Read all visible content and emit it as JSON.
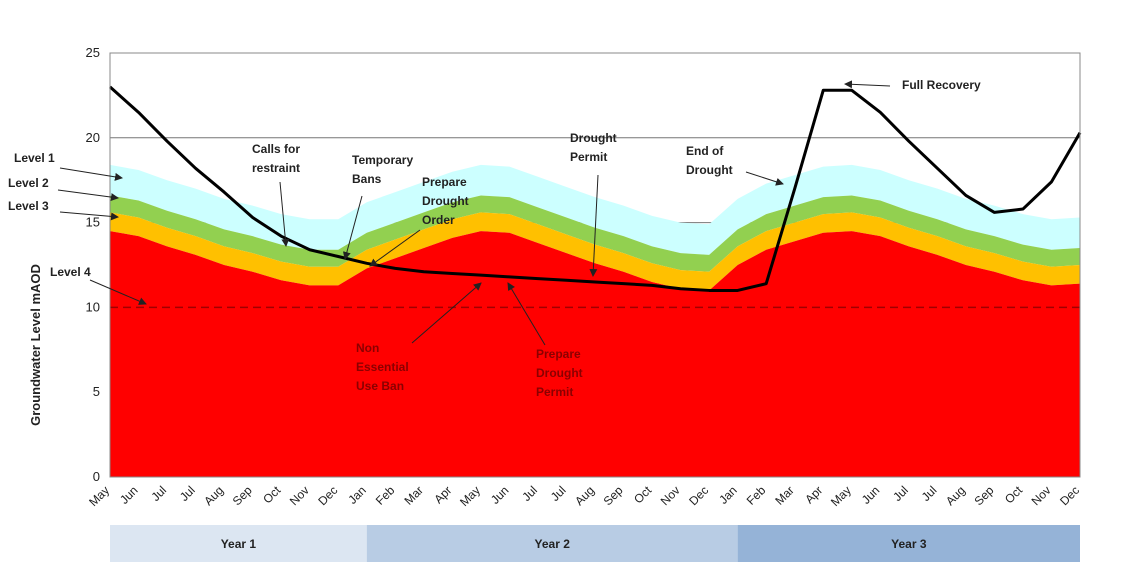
{
  "chart_data": {
    "type": "stacked_area_line",
    "y_label": "Groundwater Level mAOD",
    "categories": [
      "May",
      "Jun",
      "Jul",
      "Jul",
      "Aug",
      "Sep",
      "Oct",
      "Nov",
      "Dec",
      "Jan",
      "Feb",
      "Mar",
      "Apr",
      "May",
      "Jun",
      "Jul",
      "Jul",
      "Aug",
      "Sep",
      "Oct",
      "Nov",
      "Dec",
      "Jan",
      "Feb",
      "Mar",
      "Apr",
      "May",
      "Jun",
      "Jul",
      "Jul",
      "Aug",
      "Sep",
      "Oct",
      "Nov",
      "Dec"
    ],
    "ylim": [
      0,
      25
    ],
    "yticks": [
      0,
      5,
      10,
      15,
      20,
      25
    ],
    "grid": true,
    "series": [
      {
        "name": "Level 4",
        "color": "#ff0000",
        "values": [
          14.5,
          14.2,
          13.6,
          13.1,
          12.5,
          12.1,
          11.6,
          11.3,
          11.3,
          12.3,
          12.9,
          13.5,
          14.1,
          14.5,
          14.4,
          13.8,
          13.2,
          12.6,
          12.1,
          11.5,
          11.1,
          11.0,
          12.5,
          13.4,
          13.9,
          14.4,
          14.5,
          14.2,
          13.6,
          13.1,
          12.5,
          12.1,
          11.6,
          11.3,
          11.4
        ]
      },
      {
        "name": "Level 3",
        "color": "#ffc000",
        "values": [
          1.1,
          1.1,
          1.1,
          1.1,
          1.1,
          1.1,
          1.1,
          1.1,
          1.1,
          1.1,
          1.1,
          1.1,
          1.1,
          1.1,
          1.1,
          1.1,
          1.1,
          1.1,
          1.1,
          1.1,
          1.1,
          1.1,
          1.1,
          1.1,
          1.1,
          1.1,
          1.1,
          1.1,
          1.1,
          1.1,
          1.1,
          1.1,
          1.1,
          1.1,
          1.1
        ]
      },
      {
        "name": "Level 2",
        "color": "#92d050",
        "values": [
          1.0,
          1.0,
          1.0,
          1.0,
          1.0,
          1.0,
          1.0,
          1.0,
          1.0,
          1.0,
          1.0,
          1.0,
          1.0,
          1.0,
          1.0,
          1.0,
          1.0,
          1.0,
          1.0,
          1.0,
          1.0,
          1.0,
          1.0,
          1.0,
          1.0,
          1.0,
          1.0,
          1.0,
          1.0,
          1.0,
          1.0,
          1.0,
          1.0,
          1.0,
          1.0
        ]
      },
      {
        "name": "Level 1",
        "color": "#ccffff",
        "values": [
          1.8,
          1.8,
          1.8,
          1.8,
          1.8,
          1.8,
          1.8,
          1.8,
          1.8,
          1.8,
          1.8,
          1.8,
          1.8,
          1.8,
          1.8,
          1.8,
          1.8,
          1.8,
          1.8,
          1.8,
          1.8,
          1.8,
          1.8,
          1.8,
          1.8,
          1.8,
          1.8,
          1.8,
          1.8,
          1.8,
          1.8,
          1.8,
          1.8,
          1.8,
          1.8
        ]
      }
    ],
    "line": {
      "color": "#000000",
      "values": [
        23.0,
        21.5,
        19.8,
        18.2,
        16.8,
        15.3,
        14.2,
        13.4,
        13.0,
        12.6,
        12.3,
        12.1,
        12.0,
        11.9,
        11.8,
        11.7,
        11.6,
        11.5,
        11.4,
        11.3,
        11.1,
        11.0,
        11.0,
        11.4,
        17.0,
        22.8,
        22.8,
        21.5,
        19.8,
        18.2,
        16.6,
        15.6,
        15.8,
        17.4,
        20.3
      ]
    },
    "level4_line": {
      "value": 10,
      "color": "#a00000"
    },
    "periods": [
      "Year 1",
      "Year 2",
      "Year 3"
    ],
    "annotations": [
      {
        "text": [
          "Level 1"
        ],
        "color": "#222222"
      },
      {
        "text": [
          "Level 2"
        ],
        "color": "#222222"
      },
      {
        "text": [
          "Level 3"
        ],
        "color": "#222222"
      },
      {
        "text": [
          "Level 4"
        ],
        "color": "#222222"
      },
      {
        "text": [
          "Calls for",
          "restraint"
        ],
        "color": "#222222"
      },
      {
        "text": [
          "Temporary",
          "Bans"
        ],
        "color": "#222222"
      },
      {
        "text": [
          "Prepare",
          "Drought",
          "Order"
        ],
        "color": "#222222"
      },
      {
        "text": [
          "Drought",
          "Permit"
        ],
        "color": "#222222"
      },
      {
        "text": [
          "End of",
          "Drought"
        ],
        "color": "#222222"
      },
      {
        "text": [
          "Full Recovery"
        ],
        "color": "#222222"
      },
      {
        "text": [
          "Non",
          "Essential",
          "Use Ban"
        ],
        "color": "#8b0000"
      },
      {
        "text": [
          "Prepare",
          "Drought",
          "Permit"
        ],
        "color": "#8b0000"
      }
    ]
  }
}
